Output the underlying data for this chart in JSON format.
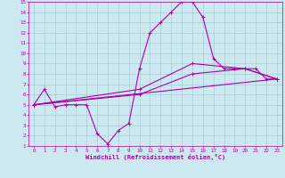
{
  "title": "",
  "xlabel": "Windchill (Refroidissement éolien,°C)",
  "xlim": [
    -0.5,
    23.5
  ],
  "ylim": [
    1,
    15
  ],
  "xticks": [
    0,
    1,
    2,
    3,
    4,
    5,
    6,
    7,
    8,
    9,
    10,
    11,
    12,
    13,
    14,
    15,
    16,
    17,
    18,
    19,
    20,
    21,
    22,
    23
  ],
  "yticks": [
    1,
    2,
    3,
    4,
    5,
    6,
    7,
    8,
    9,
    10,
    11,
    12,
    13,
    14,
    15
  ],
  "bg_color": "#cce8f0",
  "grid_color": "#aaccd4",
  "line_color": "#aa00aa",
  "series1_x": [
    0,
    1,
    2,
    3,
    4,
    5,
    6,
    7,
    8,
    9,
    10,
    11,
    12,
    13,
    14,
    15,
    16,
    17,
    18,
    19,
    20,
    21,
    22,
    23
  ],
  "series1_y": [
    5.0,
    6.5,
    4.8,
    5.0,
    5.0,
    5.0,
    2.2,
    1.2,
    2.5,
    3.2,
    8.5,
    12.0,
    13.0,
    14.0,
    15.0,
    15.0,
    13.5,
    9.5,
    8.5,
    8.5,
    8.5,
    8.5,
    7.5,
    7.5
  ],
  "series2_x": [
    0,
    23
  ],
  "series2_y": [
    5.0,
    7.5
  ],
  "series3_x": [
    0,
    10,
    15,
    20,
    23
  ],
  "series3_y": [
    5.0,
    6.0,
    8.0,
    8.5,
    7.5
  ],
  "series4_x": [
    0,
    10,
    15,
    20,
    23
  ],
  "series4_y": [
    5.0,
    6.5,
    9.0,
    8.5,
    7.5
  ]
}
